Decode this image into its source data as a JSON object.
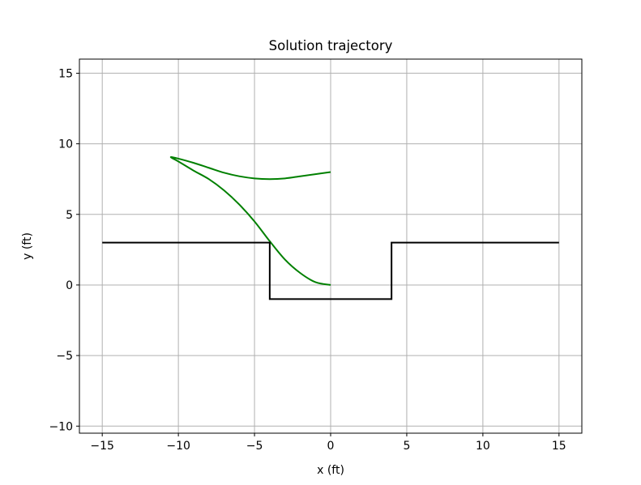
{
  "chart_data": {
    "type": "line",
    "title": "Solution trajectory",
    "xlabel": "x (ft)",
    "ylabel": "y (ft)",
    "xlim": [
      -16.5,
      16.5
    ],
    "ylim": [
      -10.5,
      16
    ],
    "xticks": [
      -15,
      -10,
      -5,
      0,
      5,
      10,
      15
    ],
    "yticks": [
      -10,
      -5,
      0,
      5,
      10,
      15
    ],
    "xtick_labels": [
      "−15",
      "−10",
      "−5",
      "0",
      "5",
      "10",
      "15"
    ],
    "ytick_labels": [
      "−10",
      "−5",
      "0",
      "5",
      "10",
      "15"
    ],
    "grid": true,
    "legend": "none",
    "series": [
      {
        "color": "#008000",
        "x": [
          0,
          -1,
          -2,
          -3,
          -4,
          -5,
          -6,
          -7,
          -8,
          -9,
          -10,
          -10.5,
          -10,
          -9,
          -8,
          -7,
          -6,
          -5,
          -4,
          -3,
          -2,
          -1,
          0
        ],
        "y": [
          0,
          0.2,
          0.85,
          1.8,
          3.1,
          4.5,
          5.7,
          6.7,
          7.5,
          8.1,
          8.75,
          9.05,
          8.95,
          8.65,
          8.3,
          7.95,
          7.7,
          7.55,
          7.5,
          7.55,
          7.7,
          7.85,
          8.0
        ]
      },
      {
        "color": "#000000",
        "x": [
          -15,
          -4,
          -4,
          4,
          4,
          15
        ],
        "y": [
          3,
          3,
          -1,
          -1,
          3,
          3
        ]
      }
    ]
  }
}
